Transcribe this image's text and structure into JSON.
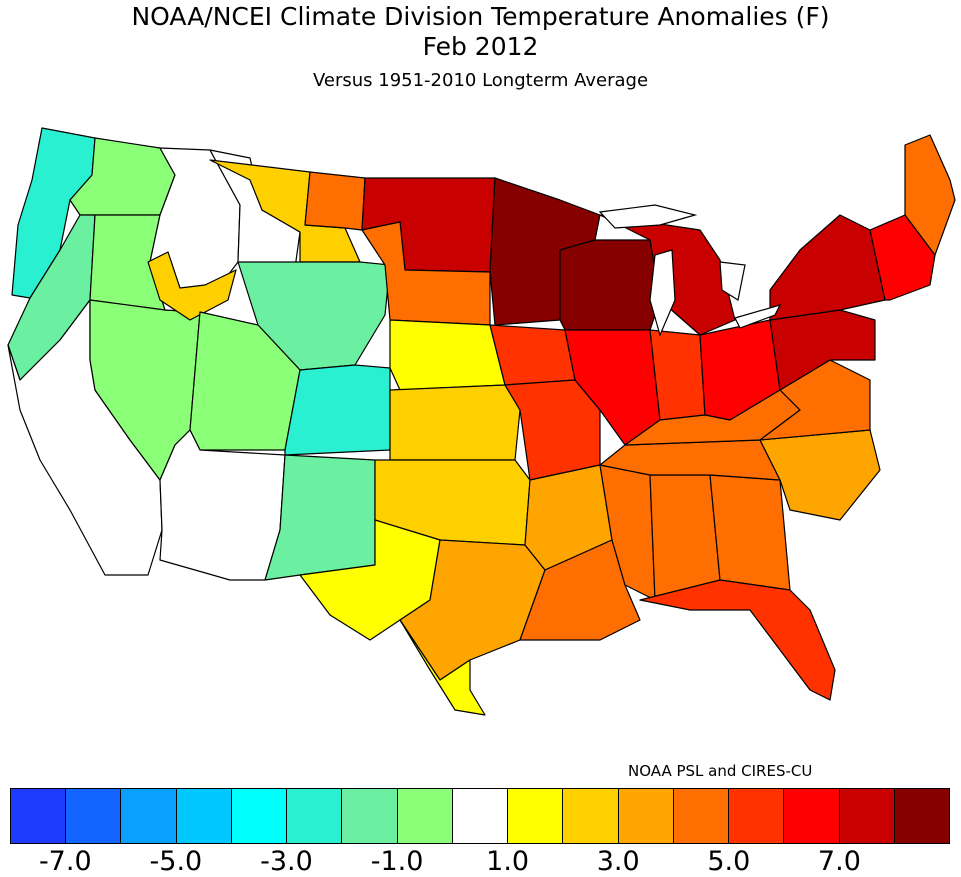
{
  "title": "NOAA/NCEI Climate Division Temperature Anomalies (F)",
  "period": "Feb 2012",
  "subtitle": "Versus 1951-2010 Longterm Average",
  "credit": "NOAA PSL and CIRES-CU",
  "colors": {
    "bin_neg8": "#1e3cff",
    "bin_neg7": "#1464ff",
    "bin_neg6": "#0aa0ff",
    "bin_neg5": "#00c8ff",
    "bin_neg4": "#00ffff",
    "bin_neg3": "#28f0d0",
    "bin_neg2": "#6af0a0",
    "bin_neg1": "#8cff78",
    "bin_0": "#ffffff",
    "bin_1": "#ffff00",
    "bin_2": "#ffd000",
    "bin_3": "#ffa500",
    "bin_4": "#ff6e00",
    "bin_5": "#ff3200",
    "bin_6": "#ff0000",
    "bin_7": "#c80000",
    "bin_8": "#870000",
    "border": "#000000"
  },
  "colorbar": {
    "bins": [
      "bin_neg8",
      "bin_neg7",
      "bin_neg6",
      "bin_neg5",
      "bin_neg4",
      "bin_neg3",
      "bin_neg2",
      "bin_neg1",
      "bin_0",
      "bin_1",
      "bin_2",
      "bin_3",
      "bin_4",
      "bin_5",
      "bin_6",
      "bin_7",
      "bin_8"
    ],
    "tick_labels": [
      "-7.0",
      "-5.0",
      "-3.0",
      "-1.0",
      "1.0",
      "3.0",
      "5.0",
      "7.0"
    ]
  },
  "regions": [
    {
      "name": "Washington Coast",
      "bin": "bin_neg3"
    },
    {
      "name": "Washington Interior",
      "bin": "bin_neg1"
    },
    {
      "name": "Oregon Coast",
      "bin": "bin_neg2"
    },
    {
      "name": "Oregon Interior",
      "bin": "bin_neg1"
    },
    {
      "name": "California",
      "bin": "bin_0"
    },
    {
      "name": "Nevada",
      "bin": "bin_neg1"
    },
    {
      "name": "Idaho",
      "bin": "bin_0"
    },
    {
      "name": "Snake River Plain",
      "bin": "bin_2"
    },
    {
      "name": "Montana West",
      "bin": "bin_0"
    },
    {
      "name": "Montana Central",
      "bin": "bin_2"
    },
    {
      "name": "Montana East",
      "bin": "bin_4"
    },
    {
      "name": "Wyoming",
      "bin": "bin_neg2"
    },
    {
      "name": "Utah",
      "bin": "bin_neg1"
    },
    {
      "name": "Colorado",
      "bin": "bin_neg3"
    },
    {
      "name": "Arizona",
      "bin": "bin_0"
    },
    {
      "name": "New Mexico",
      "bin": "bin_neg2"
    },
    {
      "name": "North Dakota",
      "bin": "bin_7"
    },
    {
      "name": "South Dakota",
      "bin": "bin_4"
    },
    {
      "name": "Nebraska",
      "bin": "bin_1"
    },
    {
      "name": "Kansas",
      "bin": "bin_2"
    },
    {
      "name": "Oklahoma",
      "bin": "bin_2"
    },
    {
      "name": "West Texas",
      "bin": "bin_1"
    },
    {
      "name": "Central Texas",
      "bin": "bin_3"
    },
    {
      "name": "South Texas",
      "bin": "bin_1"
    },
    {
      "name": "Minnesota",
      "bin": "bin_8"
    },
    {
      "name": "Wisconsin",
      "bin": "bin_8"
    },
    {
      "name": "Michigan",
      "bin": "bin_7"
    },
    {
      "name": "Iowa",
      "bin": "bin_5"
    },
    {
      "name": "Missouri",
      "bin": "bin_5"
    },
    {
      "name": "Illinois",
      "bin": "bin_6"
    },
    {
      "name": "Indiana",
      "bin": "bin_5"
    },
    {
      "name": "Ohio",
      "bin": "bin_6"
    },
    {
      "name": "Arkansas",
      "bin": "bin_3"
    },
    {
      "name": "Louisiana",
      "bin": "bin_4"
    },
    {
      "name": "Mississippi",
      "bin": "bin_4"
    },
    {
      "name": "Alabama",
      "bin": "bin_4"
    },
    {
      "name": "Georgia",
      "bin": "bin_4"
    },
    {
      "name": "Florida",
      "bin": "bin_5"
    },
    {
      "name": "Tennessee",
      "bin": "bin_4"
    },
    {
      "name": "Kentucky",
      "bin": "bin_4"
    },
    {
      "name": "Carolinas",
      "bin": "bin_3"
    },
    {
      "name": "Virginia",
      "bin": "bin_4"
    },
    {
      "name": "Pennsylvania",
      "bin": "bin_7"
    },
    {
      "name": "New York",
      "bin": "bin_7"
    },
    {
      "name": "New England",
      "bin": "bin_6"
    },
    {
      "name": "Maine",
      "bin": "bin_4"
    }
  ]
}
